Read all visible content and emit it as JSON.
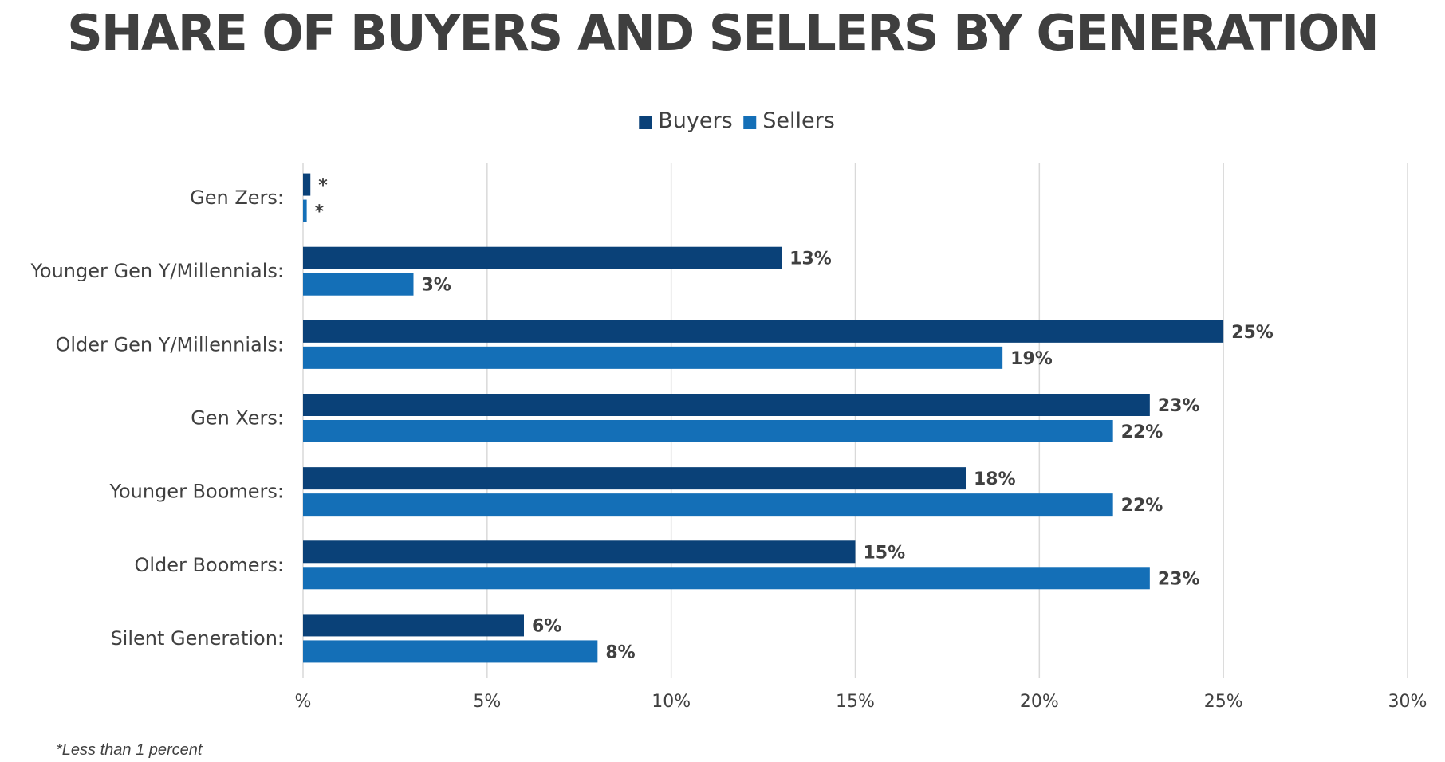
{
  "chart_data": {
    "type": "bar",
    "orientation": "horizontal",
    "title": "SHARE OF BUYERS AND SELLERS BY GENERATION",
    "categories": [
      "Gen Zers:",
      "Younger Gen Y/Millennials:",
      "Older Gen Y/Millennials:",
      "Gen Xers:",
      "Younger Boomers:",
      "Older Boomers:",
      "Silent Generation:"
    ],
    "series": [
      {
        "name": "Buyers",
        "color": "#0a4178",
        "values": [
          0.2,
          13,
          25,
          23,
          18,
          15,
          6
        ],
        "labels": [
          "*",
          "13%",
          "25%",
          "23%",
          "18%",
          "15%",
          "6%"
        ]
      },
      {
        "name": "Sellers",
        "color": "#146fb7",
        "values": [
          0.1,
          3,
          19,
          22,
          22,
          23,
          8
        ],
        "labels": [
          "*",
          "3%",
          "19%",
          "22%",
          "22%",
          "23%",
          "8%"
        ]
      }
    ],
    "xlim": [
      0,
      30
    ],
    "xticks": [
      "%",
      "5%",
      "10%",
      "15%",
      "20%",
      "25%",
      "30%"
    ],
    "grid": true,
    "legend_position": "top-center",
    "footnote": "*Less than 1 percent"
  }
}
